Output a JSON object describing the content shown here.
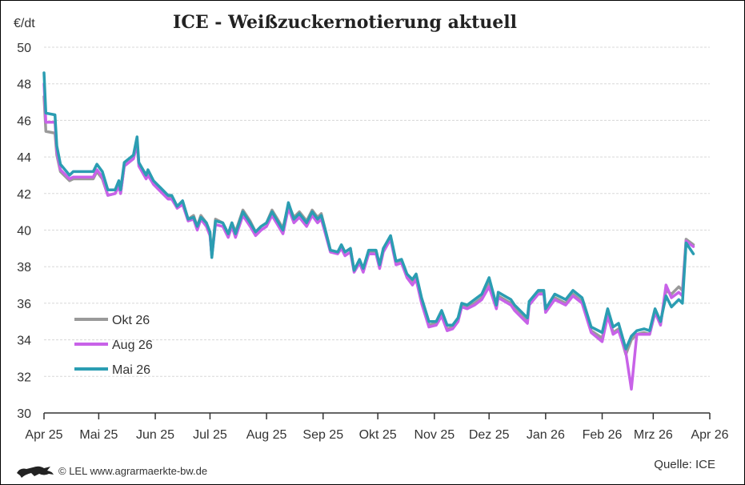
{
  "chart_data": {
    "type": "line",
    "title": "ICE - Weißzuckernotierung aktuell",
    "ylabel": "€/dt",
    "xlabel": "",
    "ylim": [
      30,
      50
    ],
    "yticks": [
      "30",
      "32",
      "34",
      "36",
      "38",
      "40",
      "42",
      "44",
      "46",
      "48",
      "50"
    ],
    "xlim": [
      "2025-04-01",
      "2026-04-01"
    ],
    "xticks": [
      {
        "date": "2025-04-01",
        "label": "Apr 25"
      },
      {
        "date": "2025-05-01",
        "label": "Mai 25"
      },
      {
        "date": "2025-06-01",
        "label": "Jun 25"
      },
      {
        "date": "2025-07-01",
        "label": "Jul 25"
      },
      {
        "date": "2025-08-01",
        "label": "Aug 25"
      },
      {
        "date": "2025-09-01",
        "label": "Sep 25"
      },
      {
        "date": "2025-10-01",
        "label": "Okt 25"
      },
      {
        "date": "2025-11-01",
        "label": "Nov 25"
      },
      {
        "date": "2025-12-01",
        "label": "Dez 25"
      },
      {
        "date": "2026-01-01",
        "label": "Jan 26"
      },
      {
        "date": "2026-02-01",
        "label": "Feb 26"
      },
      {
        "date": "2026-03-01",
        "label": "Mrz 26"
      },
      {
        "date": "2026-04-01",
        "label": "Apr 26"
      }
    ],
    "grid": true,
    "legend_position": "bottom-left",
    "x": [
      "2025-04-01",
      "2025-04-02",
      "2025-04-07",
      "2025-04-08",
      "2025-04-10",
      "2025-04-15",
      "2025-04-17",
      "2025-04-28",
      "2025-04-30",
      "2025-05-03",
      "2025-05-06",
      "2025-05-10",
      "2025-05-12",
      "2025-05-13",
      "2025-05-15",
      "2025-05-20",
      "2025-05-22",
      "2025-05-23",
      "2025-05-27",
      "2025-05-28",
      "2025-05-31",
      "2025-06-04",
      "2025-06-08",
      "2025-06-10",
      "2025-06-13",
      "2025-06-16",
      "2025-06-19",
      "2025-06-22",
      "2025-06-24",
      "2025-06-26",
      "2025-06-29",
      "2025-07-01",
      "2025-07-02",
      "2025-07-04",
      "2025-07-08",
      "2025-07-11",
      "2025-07-13",
      "2025-07-15",
      "2025-07-19",
      "2025-07-23",
      "2025-07-26",
      "2025-07-29",
      "2025-08-01",
      "2025-08-04",
      "2025-08-07",
      "2025-08-10",
      "2025-08-13",
      "2025-08-16",
      "2025-08-19",
      "2025-08-23",
      "2025-08-26",
      "2025-08-29",
      "2025-08-31",
      "2025-09-02",
      "2025-09-05",
      "2025-09-09",
      "2025-09-11",
      "2025-09-13",
      "2025-09-16",
      "2025-09-18",
      "2025-09-21",
      "2025-09-23",
      "2025-09-26",
      "2025-09-30",
      "2025-10-02",
      "2025-10-04",
      "2025-10-08",
      "2025-10-11",
      "2025-10-14",
      "2025-10-17",
      "2025-10-20",
      "2025-10-22",
      "2025-10-25",
      "2025-10-29",
      "2025-11-02",
      "2025-11-05",
      "2025-11-08",
      "2025-11-11",
      "2025-11-14",
      "2025-11-16",
      "2025-11-19",
      "2025-11-23",
      "2025-11-27",
      "2025-12-01",
      "2025-12-05",
      "2025-12-06",
      "2025-12-13",
      "2025-12-15",
      "2025-12-22",
      "2025-12-23",
      "2025-12-28",
      "2025-12-31",
      "2026-01-01",
      "2026-01-06",
      "2026-01-12",
      "2026-01-16",
      "2026-01-21",
      "2026-01-26",
      "2026-02-01",
      "2026-02-04",
      "2026-02-07",
      "2026-02-10",
      "2026-02-14",
      "2026-02-17",
      "2026-02-20",
      "2026-02-24",
      "2026-02-27",
      "2026-03-02",
      "2026-03-05",
      "2026-03-08",
      "2026-03-11",
      "2026-03-15",
      "2026-03-17",
      "2026-03-19",
      "2026-03-23"
    ],
    "series": [
      {
        "name": "Okt 26",
        "color": "#9a9a9a",
        "values": [
          47.3,
          45.4,
          45.3,
          44.1,
          43.2,
          42.7,
          42.8,
          42.8,
          43.2,
          42.8,
          41.9,
          42.0,
          42.5,
          42.0,
          43.5,
          43.9,
          44.8,
          43.6,
          42.9,
          43.1,
          42.6,
          42.2,
          41.8,
          41.8,
          41.2,
          41.5,
          40.6,
          40.8,
          40.2,
          40.8,
          40.4,
          39.8,
          38.6,
          40.6,
          40.4,
          39.8,
          40.4,
          39.9,
          41.1,
          40.5,
          39.9,
          40.2,
          40.4,
          41.1,
          40.6,
          40.1,
          41.4,
          40.7,
          41.0,
          40.5,
          41.1,
          40.7,
          40.9,
          40.1,
          38.9,
          38.8,
          39.1,
          38.8,
          39.0,
          37.8,
          38.3,
          37.8,
          38.8,
          38.8,
          38.0,
          38.9,
          39.6,
          38.2,
          38.3,
          37.5,
          37.1,
          37.4,
          36.1,
          34.8,
          34.9,
          35.4,
          34.6,
          34.7,
          35.1,
          35.9,
          35.8,
          36.0,
          36.3,
          37.1,
          35.8,
          36.4,
          36.0,
          35.7,
          35.0,
          36.0,
          36.6,
          36.6,
          35.6,
          36.3,
          36.0,
          36.5,
          36.1,
          34.5,
          34.1,
          35.4,
          34.4,
          34.6,
          33.2,
          34.0,
          34.3,
          34.4,
          34.3,
          35.5,
          34.9,
          36.7,
          36.5,
          36.9,
          36.7,
          39.5,
          39.2
        ]
      },
      {
        "name": "Aug 26",
        "color": "#c862e8",
        "values": [
          48.0,
          45.9,
          45.9,
          44.3,
          43.3,
          42.8,
          42.9,
          42.9,
          43.3,
          42.9,
          41.9,
          42.0,
          42.4,
          42.0,
          43.5,
          43.9,
          44.7,
          43.5,
          42.8,
          43.0,
          42.5,
          42.1,
          41.7,
          41.7,
          41.2,
          41.4,
          40.5,
          40.6,
          40.0,
          40.6,
          40.2,
          39.7,
          38.6,
          40.3,
          40.2,
          39.6,
          40.2,
          39.6,
          40.8,
          40.2,
          39.7,
          40.0,
          40.2,
          40.8,
          40.3,
          39.8,
          41.2,
          40.4,
          40.7,
          40.2,
          40.8,
          40.4,
          40.6,
          39.9,
          38.8,
          38.7,
          39.0,
          38.6,
          38.8,
          37.7,
          38.2,
          37.7,
          38.7,
          38.7,
          37.9,
          38.8,
          39.5,
          38.1,
          38.2,
          37.4,
          37.0,
          37.3,
          36.0,
          34.7,
          34.8,
          35.3,
          34.5,
          34.6,
          35.0,
          35.8,
          35.7,
          35.9,
          36.2,
          36.9,
          35.7,
          36.3,
          35.9,
          35.6,
          34.9,
          35.9,
          36.5,
          36.5,
          35.5,
          36.2,
          35.9,
          36.4,
          36.0,
          34.4,
          33.9,
          35.3,
          34.3,
          34.5,
          33.3,
          31.3,
          34.3,
          34.3,
          34.3,
          35.5,
          34.8,
          37.0,
          36.3,
          36.6,
          36.4,
          39.4,
          39.1
        ]
      },
      {
        "name": "Mai 26",
        "color": "#2b9db2",
        "values": [
          48.6,
          46.4,
          46.3,
          44.6,
          43.6,
          43.0,
          43.2,
          43.2,
          43.6,
          43.2,
          42.2,
          42.2,
          42.7,
          42.2,
          43.7,
          44.1,
          45.1,
          43.7,
          43.0,
          43.3,
          42.7,
          42.3,
          41.9,
          41.9,
          41.3,
          41.6,
          40.6,
          40.7,
          40.2,
          40.7,
          40.4,
          39.9,
          38.5,
          40.5,
          40.4,
          39.8,
          40.4,
          39.8,
          41.0,
          40.4,
          39.9,
          40.2,
          40.4,
          41.0,
          40.5,
          40.0,
          41.5,
          40.6,
          40.9,
          40.4,
          41.0,
          40.6,
          40.8,
          40.1,
          38.9,
          38.8,
          39.2,
          38.8,
          39.0,
          37.8,
          38.4,
          37.9,
          38.9,
          38.9,
          38.1,
          39.0,
          39.7,
          38.3,
          38.4,
          37.6,
          37.3,
          37.6,
          36.3,
          35.0,
          35.0,
          35.6,
          34.8,
          34.8,
          35.2,
          36.0,
          35.9,
          36.2,
          36.5,
          37.4,
          35.9,
          36.6,
          36.2,
          35.9,
          35.2,
          36.1,
          36.7,
          36.7,
          35.7,
          36.5,
          36.2,
          36.7,
          36.3,
          34.7,
          34.4,
          35.7,
          34.7,
          34.9,
          33.5,
          34.2,
          34.5,
          34.6,
          34.5,
          35.7,
          35.0,
          36.4,
          35.8,
          36.2,
          36.0,
          39.3,
          38.7
        ]
      }
    ]
  },
  "footer": {
    "copyright": "© LEL www.agrarmaerkte-bw.de",
    "source": "Quelle: ICE",
    "logo_icon": "lion-icon"
  }
}
